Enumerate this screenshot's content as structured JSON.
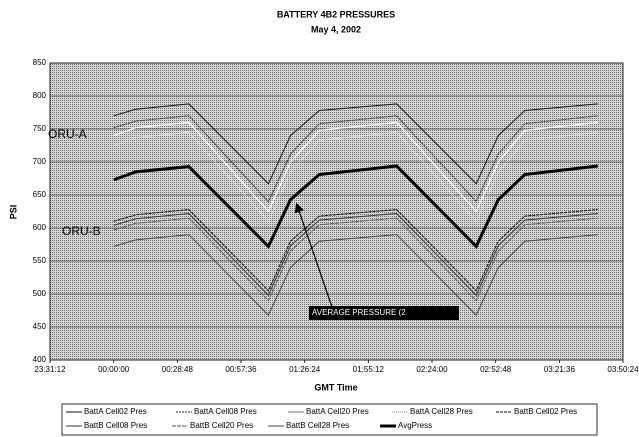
{
  "chart_data": {
    "type": "line",
    "title": "BATTERY 4B2 PRESSURES",
    "subtitle": "May 4, 2002",
    "x_label": "GMT Time",
    "y_label": "PSI",
    "x": [
      0,
      10,
      34,
      70,
      80,
      93,
      128,
      164,
      174,
      186,
      219
    ],
    "xlim": [
      -28.8,
      230.4
    ],
    "xticks": [
      {
        "value": -28.8,
        "label": "23:31:12"
      },
      {
        "value": 0,
        "label": "00:00:00"
      },
      {
        "value": 28.8,
        "label": "00:28:48"
      },
      {
        "value": 57.6,
        "label": "00:57:36"
      },
      {
        "value": 86.4,
        "label": "01:26:24"
      },
      {
        "value": 115.2,
        "label": "01:55:12"
      },
      {
        "value": 144,
        "label": "02:24:00"
      },
      {
        "value": 172.8,
        "label": "02:52:48"
      },
      {
        "value": 201.6,
        "label": "03:21:36"
      },
      {
        "value": 230.4,
        "label": "03:50:24"
      }
    ],
    "ylim": [
      400,
      850
    ],
    "yticks": [
      400,
      450,
      500,
      550,
      600,
      650,
      700,
      750,
      800,
      850
    ],
    "grid": true,
    "series": [
      {
        "name": "BattA Cell02 Pres",
        "color": "#111111",
        "dash": "none",
        "width": 1,
        "values": [
          770,
          780,
          788,
          667,
          740,
          778,
          788,
          667,
          740,
          778,
          788
        ]
      },
      {
        "name": "BattA Cell08 Pres",
        "color": "#222222",
        "dash": "2,1",
        "width": 1,
        "values": [
          752,
          762,
          770,
          640,
          712,
          758,
          770,
          640,
          712,
          758,
          770
        ]
      },
      {
        "name": "BattA Cell20 Pres",
        "color": "#ffffff",
        "dash": "none",
        "width": 1.2,
        "values": [
          740,
          752,
          760,
          625,
          700,
          748,
          760,
          625,
          700,
          748,
          760
        ]
      },
      {
        "name": "BattA Cell28 Pres",
        "color": "#f0f0f0",
        "dash": "1,1",
        "width": 1,
        "values": [
          725,
          737,
          745,
          610,
          685,
          733,
          745,
          610,
          685,
          733,
          745
        ]
      },
      {
        "name": "BattB Cell02 Pres",
        "color": "#000000",
        "dash": "3,1",
        "width": 1,
        "values": [
          610,
          620,
          628,
          505,
          580,
          618,
          628,
          505,
          580,
          618,
          628
        ]
      },
      {
        "name": "BattB Cell08 Pres",
        "color": "#333333",
        "dash": "none",
        "width": 1,
        "values": [
          604,
          614,
          622,
          498,
          573,
          612,
          622,
          498,
          573,
          612,
          622
        ]
      },
      {
        "name": "BattB Cell20 Pres",
        "color": "#555555",
        "dash": "4,1",
        "width": 1,
        "values": [
          597,
          607,
          615,
          490,
          565,
          605,
          615,
          490,
          565,
          605,
          615
        ]
      },
      {
        "name": "BattB Cell28 Pres",
        "color": "#444444",
        "dash": "none",
        "width": 1,
        "values": [
          572,
          582,
          590,
          468,
          540,
          580,
          590,
          468,
          540,
          580,
          590
        ]
      },
      {
        "name": "AvgPress",
        "color": "#000000",
        "dash": "none",
        "width": 3,
        "values": [
          673,
          685,
          693,
          572,
          643,
          681,
          694,
          572,
          643,
          681,
          694
        ]
      }
    ],
    "annotations": [
      "ORU-A",
      "ORU-B",
      "AVERAGE PRESSURE (2"
    ]
  }
}
